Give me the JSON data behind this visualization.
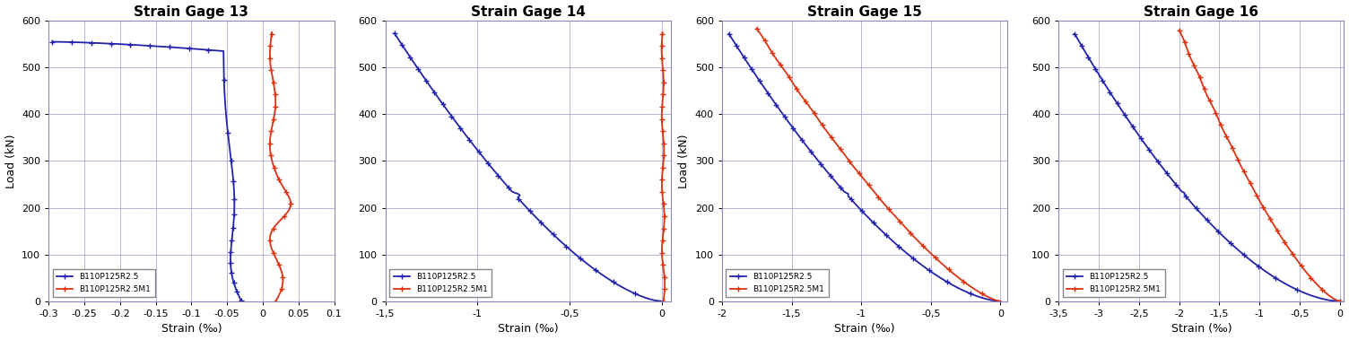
{
  "subplots": [
    {
      "title": "Strain Gage 13",
      "xlim": [
        -0.3,
        0.1
      ],
      "xticks": [
        -0.3,
        -0.25,
        -0.2,
        -0.15,
        -0.1,
        -0.05,
        0.0,
        0.05,
        0.1
      ],
      "xtick_labels": [
        "-0.3",
        "-0.25",
        "-0.2",
        "-0.15",
        "-0.1",
        "-0.05",
        "0",
        "0.05",
        "0.1"
      ],
      "ylim": [
        0,
        600
      ],
      "yticks": [
        0,
        100,
        200,
        300,
        400,
        500,
        600
      ],
      "show_ylabel": true
    },
    {
      "title": "Strain Gage 14",
      "xlim": [
        -1.5,
        0.05
      ],
      "xticks": [
        -1.5,
        -1.0,
        -0.5,
        0.0
      ],
      "xtick_labels": [
        "-1,5",
        "-1",
        "-0,5",
        "0"
      ],
      "ylim": [
        0,
        600
      ],
      "yticks": [
        0,
        100,
        200,
        300,
        400,
        500,
        600
      ],
      "show_ylabel": false
    },
    {
      "title": "Strain Gage 15",
      "xlim": [
        -2.0,
        0.05
      ],
      "xticks": [
        -2.0,
        -1.5,
        -1.0,
        -0.5,
        0.0
      ],
      "xtick_labels": [
        "-2",
        "-1,5",
        "-1",
        "-0,5",
        "0"
      ],
      "ylim": [
        0,
        600
      ],
      "yticks": [
        0,
        100,
        200,
        300,
        400,
        500,
        600
      ],
      "show_ylabel": true
    },
    {
      "title": "Strain Gage 16",
      "xlim": [
        -3.5,
        0.05
      ],
      "xticks": [
        -3.5,
        -3.0,
        -2.5,
        -2.0,
        -1.5,
        -1.0,
        -0.5,
        0.0
      ],
      "xtick_labels": [
        "-3,5",
        "-3",
        "-2,5",
        "-2",
        "-1,5",
        "-1",
        "-0,5",
        "0"
      ],
      "ylim": [
        0,
        600
      ],
      "yticks": [
        0,
        100,
        200,
        300,
        400,
        500,
        600
      ],
      "show_ylabel": false
    }
  ],
  "blue_color": "#2222aa",
  "red_color": "#dd3311",
  "grid_color": "#aaaadd",
  "bg_color": "#ffffff",
  "xlabel": "Strain (‰)",
  "ylabel": "Load (kN)",
  "legend_labels": [
    "B110P125R2.5",
    "B110P125R2.5M1"
  ],
  "title_fontsize": 11,
  "label_fontsize": 9,
  "tick_fontsize": 8
}
